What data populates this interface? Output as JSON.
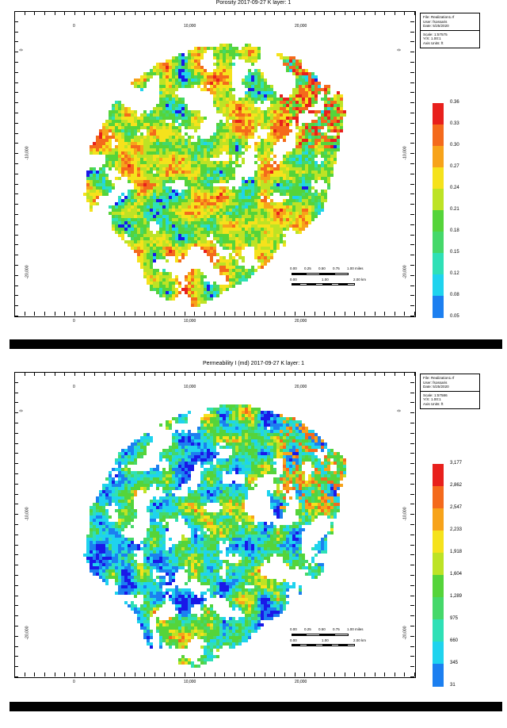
{
  "maps": [
    {
      "id": "porosity",
      "title": "Porosity 2017-09-27     K layer: 1",
      "info": {
        "file": "File: Realization1.rf",
        "user": "User: fsossaris",
        "date": "Date: 5/25/2020",
        "scale": "Scale: 1:57575",
        "yx": "Y/X: 1.00:1",
        "units": "Axis Units: ft"
      },
      "legend": [
        "0.36",
        "0.33",
        "0.30",
        "0.27",
        "0.24",
        "0.21",
        "0.18",
        "0.15",
        "0.12",
        "0.08",
        "0.05"
      ],
      "colors": [
        "#e8201c",
        "#f46a1c",
        "#f7a31a",
        "#f5e21c",
        "#bde325",
        "#55d43a",
        "#45d86a",
        "#2fe0b6",
        "#1fd3ee",
        "#1c7ff0",
        "#1a18e8"
      ],
      "dominant": [
        0.55,
        0.25,
        0.12,
        0.08
      ],
      "x_ticks": [
        "0",
        "10,000",
        "20,000"
      ],
      "y_ticks_left": [
        "0",
        "-10,000",
        "-20,000"
      ],
      "y_ticks_right": [
        "0",
        "-10,000",
        "-20,000"
      ],
      "scale_top": [
        "0.00",
        "0.25",
        "0.50",
        "0.75",
        "1.00 miles"
      ],
      "scale_bottom": [
        "0.00",
        "1.00",
        "2.00 km"
      ]
    },
    {
      "id": "permeability",
      "title": "Permeability I (md) 2017-09-27     K layer: 1",
      "info": {
        "file": "File: Realization1.rf",
        "user": "User: fsossaris",
        "date": "Date: 5/25/2020",
        "scale": "Scale: 1:57586",
        "yx": "Y/X: 1.00:1",
        "units": "Axis Units: ft"
      },
      "legend": [
        "3,177",
        "2,862",
        "2,547",
        "2,233",
        "1,918",
        "1,604",
        "1,289",
        "975",
        "660",
        "345",
        "31"
      ],
      "colors": [
        "#e8201c",
        "#f46a1c",
        "#f7a31a",
        "#f5e21c",
        "#bde325",
        "#55d43a",
        "#45d86a",
        "#2fe0b6",
        "#1fd3ee",
        "#1c7ff0",
        "#1a18e8"
      ],
      "dominant": [
        0.1,
        0.35,
        0.4,
        0.15
      ],
      "x_ticks": [
        "0",
        "10,000",
        "20,000"
      ],
      "y_ticks_left": [
        "0",
        "-10,000",
        "-20,000"
      ],
      "y_ticks_right": [
        "0",
        "-10,000",
        "-20,000"
      ],
      "scale_top": [
        "0.00",
        "0.25",
        "0.50",
        "0.75",
        "1.00 miles"
      ],
      "scale_bottom": [
        "0.00",
        "1.00",
        "2.00 km"
      ]
    }
  ]
}
